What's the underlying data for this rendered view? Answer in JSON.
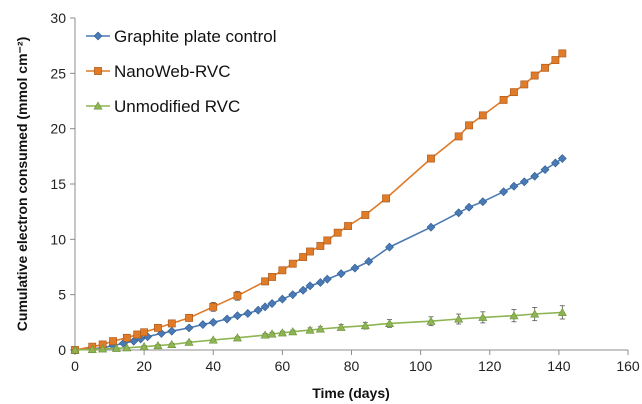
{
  "chart_data": {
    "type": "line",
    "title": "",
    "xlabel": "Time (days)",
    "ylabel": "Cumulative electron consumed (mmol cm⁻²)",
    "xlim": [
      0,
      160
    ],
    "ylim": [
      0,
      30
    ],
    "xticks": [
      0,
      20,
      40,
      60,
      80,
      100,
      120,
      140,
      160
    ],
    "yticks": [
      0,
      5,
      10,
      15,
      20,
      25,
      30
    ],
    "grid": false,
    "legend": "top-left",
    "series": [
      {
        "name": "Graphite plate control",
        "color": "#4a7ab5",
        "marker": "diamond",
        "x": [
          0,
          5,
          8,
          11,
          14,
          17,
          19,
          21,
          25,
          28,
          33,
          37,
          40,
          44,
          47,
          50,
          53,
          55,
          57,
          60,
          63,
          66,
          68,
          71,
          73,
          77,
          81,
          85,
          91,
          103,
          111,
          114,
          118,
          124,
          127,
          130,
          133,
          136,
          139,
          141
        ],
        "y": [
          0,
          0.1,
          0.2,
          0.4,
          0.6,
          0.8,
          1.0,
          1.2,
          1.5,
          1.7,
          2.0,
          2.3,
          2.5,
          2.8,
          3.1,
          3.3,
          3.6,
          3.9,
          4.2,
          4.6,
          5.0,
          5.4,
          5.8,
          6.1,
          6.4,
          6.9,
          7.4,
          8.0,
          9.3,
          11.1,
          12.4,
          12.9,
          13.4,
          14.3,
          14.8,
          15.2,
          15.7,
          16.3,
          16.9,
          17.3
        ],
        "error": [
          0.1,
          0.1,
          0.1,
          0.1,
          0.1,
          0.1,
          0.1,
          0.1,
          0.1,
          0.1,
          0.1,
          0.1,
          0.1,
          0.1,
          0.1,
          0.1,
          0.1,
          0.1,
          0.1,
          0.1,
          0.1,
          0.1,
          0.15,
          0.1,
          0.1,
          0.1,
          0.1,
          0.1,
          0.1,
          0.1,
          0.1,
          0.1,
          0.1,
          0.1,
          0.1,
          0.1,
          0.1,
          0.1,
          0.1,
          0.1
        ]
      },
      {
        "name": "NanoWeb-RVC",
        "color": "#e07b27",
        "marker": "square",
        "x": [
          0,
          5,
          8,
          11,
          15,
          18,
          20,
          24,
          28,
          33,
          40,
          47,
          55,
          57,
          60,
          63,
          66,
          68,
          71,
          73,
          76,
          79,
          84,
          90,
          103,
          111,
          114,
          118,
          124,
          127,
          130,
          133,
          136,
          139,
          141
        ],
        "y": [
          0,
          0.3,
          0.5,
          0.8,
          1.1,
          1.4,
          1.6,
          2.0,
          2.4,
          2.9,
          3.9,
          4.9,
          6.2,
          6.6,
          7.2,
          7.8,
          8.4,
          8.9,
          9.4,
          9.9,
          10.6,
          11.2,
          12.2,
          13.7,
          17.3,
          19.3,
          20.3,
          21.2,
          22.6,
          23.3,
          24.0,
          24.8,
          25.5,
          26.2,
          26.8
        ],
        "error": [
          0.1,
          0.1,
          0.1,
          0.1,
          0.1,
          0.1,
          0.1,
          0.15,
          0.2,
          0.3,
          0.4,
          0.4,
          0.3,
          0.2,
          0.2,
          0.2,
          0.2,
          0.2,
          0.2,
          0.2,
          0.2,
          0.2,
          0.2,
          0.3,
          0.2,
          0.2,
          0.2,
          0.2,
          0.2,
          0.2,
          0.2,
          0.2,
          0.2,
          0.2,
          0.2
        ]
      },
      {
        "name": "Unmodified RVC",
        "color": "#8db551",
        "marker": "triangle",
        "x": [
          0,
          5,
          8,
          12,
          15,
          20,
          24,
          28,
          33,
          40,
          47,
          55,
          57,
          60,
          63,
          68,
          71,
          77,
          84,
          91,
          103,
          111,
          118,
          127,
          133,
          141
        ],
        "y": [
          0,
          0.05,
          0.1,
          0.15,
          0.2,
          0.3,
          0.4,
          0.5,
          0.7,
          0.9,
          1.1,
          1.35,
          1.45,
          1.55,
          1.65,
          1.8,
          1.9,
          2.05,
          2.2,
          2.4,
          2.6,
          2.8,
          2.95,
          3.1,
          3.25,
          3.4
        ],
        "error": [
          0.05,
          0.05,
          0.05,
          0.05,
          0.05,
          0.1,
          0.1,
          0.1,
          0.1,
          0.1,
          0.1,
          0.15,
          0.15,
          0.15,
          0.15,
          0.2,
          0.2,
          0.25,
          0.3,
          0.35,
          0.4,
          0.45,
          0.5,
          0.55,
          0.6,
          0.6
        ]
      }
    ]
  }
}
